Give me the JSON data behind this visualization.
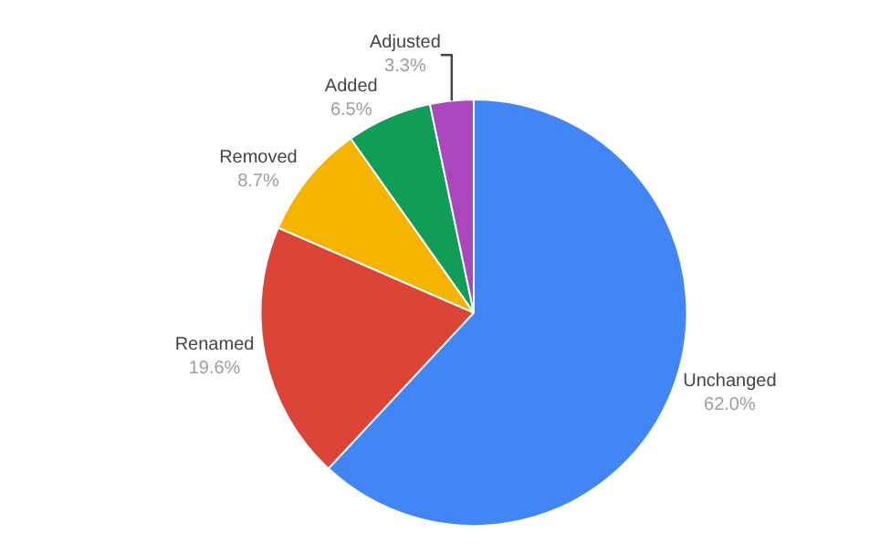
{
  "chart_data": {
    "type": "pie",
    "categories": [
      "Unchanged",
      "Renamed",
      "Removed",
      "Added",
      "Adjusted"
    ],
    "values": [
      62.0,
      19.6,
      8.7,
      6.5,
      3.3
    ],
    "value_labels": [
      "62.0%",
      "19.6%",
      "8.7%",
      "6.5%",
      "3.3%"
    ],
    "colors": [
      "#4285f4",
      "#db4437",
      "#f4b400",
      "#0f9d58",
      "#ab47bc"
    ],
    "legend": false
  }
}
